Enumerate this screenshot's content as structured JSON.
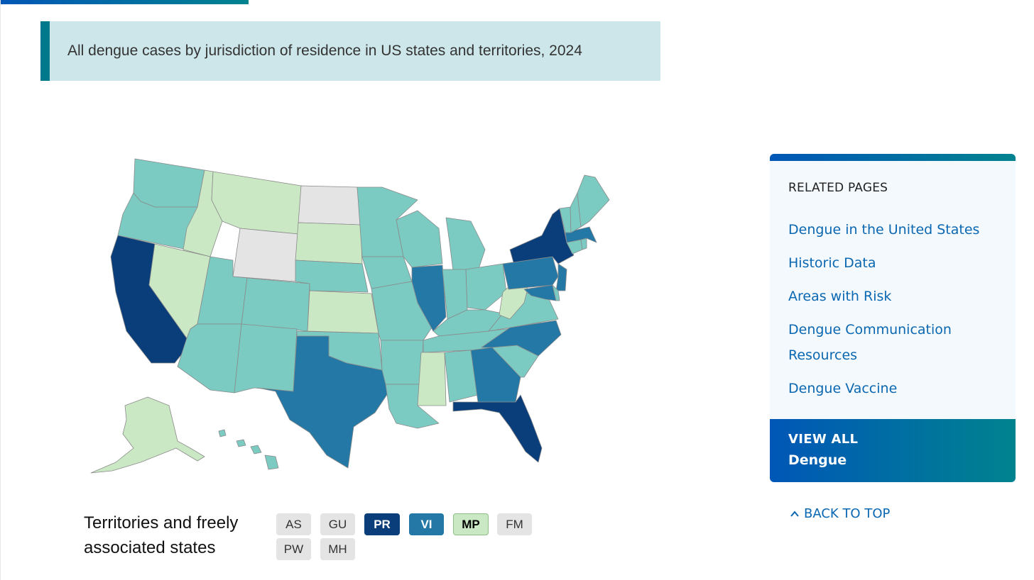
{
  "caption": {
    "title": "All dengue cases by jurisdiction of residence in US states and territories, 2024"
  },
  "map": {
    "colors": {
      "no_data": "#e4e4e4",
      "level1": "#cbe8c4",
      "level2": "#7bcbc3",
      "level3": "#2478a6",
      "level4": "#0a3e7a"
    }
  },
  "territories": {
    "label": "Territories and freely associated states",
    "chips": [
      {
        "code": "AS",
        "level": "no_data"
      },
      {
        "code": "GU",
        "level": "no_data"
      },
      {
        "code": "PR",
        "level": "level4"
      },
      {
        "code": "VI",
        "level": "level3"
      },
      {
        "code": "MP",
        "level": "level1"
      },
      {
        "code": "FM",
        "level": "no_data"
      },
      {
        "code": "PW",
        "level": "no_data"
      },
      {
        "code": "MH",
        "level": "no_data"
      }
    ]
  },
  "sidebar": {
    "heading": "RELATED PAGES",
    "links": [
      "Dengue in the United States",
      "Historic Data",
      "Areas with Risk",
      "Dengue Communication Resources",
      "Dengue Vaccine"
    ],
    "view_all_label": "VIEW ALL",
    "view_all_target": "Dengue"
  },
  "back_to_top": "BACK TO TOP"
}
